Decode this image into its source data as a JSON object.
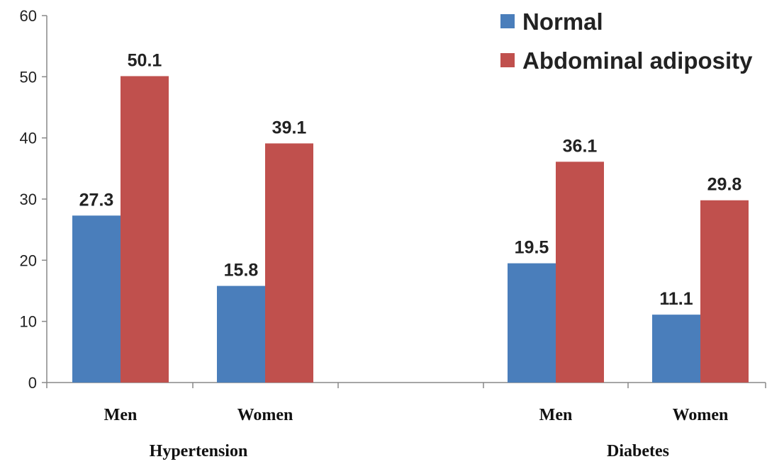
{
  "chart_data": {
    "type": "bar",
    "title": "",
    "xlabel": "",
    "ylabel": "",
    "ylim": [
      0,
      60
    ],
    "yticks": [
      0,
      10,
      20,
      30,
      40,
      50,
      60
    ],
    "grid": false,
    "legend_position": "top-right",
    "groups": [
      {
        "label": "Hypertension",
        "categories": [
          "Men",
          "Women"
        ]
      },
      {
        "label": "Diabetes",
        "categories": [
          "Men",
          "Women"
        ]
      }
    ],
    "categories": [
      "Men",
      "Women",
      "Men",
      "Women"
    ],
    "series": [
      {
        "name": "Normal",
        "color": "#4a7ebb",
        "values": [
          27.3,
          15.8,
          19.5,
          11.1
        ],
        "labels": [
          "27.3",
          "15.8",
          "19.5",
          "11.1"
        ]
      },
      {
        "name": "Abdominal adiposity",
        "color": "#c0504d",
        "values": [
          50.1,
          39.1,
          36.1,
          29.8
        ],
        "labels": [
          "50.1",
          "39.1",
          "36.1",
          "29.8"
        ]
      }
    ]
  }
}
